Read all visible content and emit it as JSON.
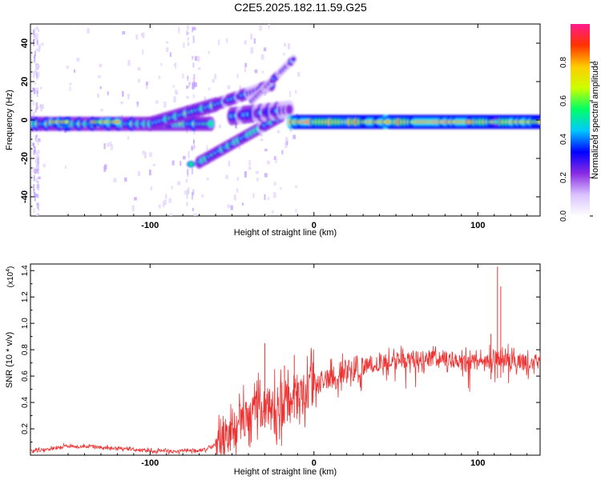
{
  "figure": {
    "title": "C2E5.2025.182.11.59.G25",
    "background": "#ffffff",
    "trace_color": "#ee3333"
  },
  "chart_data": [
    {
      "type": "heatmap",
      "name": "spectrogram",
      "xlabel": "Height of straight line (km)",
      "ylabel": "Frequency (Hz)",
      "xlim": [
        -173,
        138
      ],
      "ylim": [
        -50,
        50
      ],
      "xticks": [
        -100,
        0,
        100
      ],
      "yticks": [
        -40,
        -20,
        0,
        20,
        40
      ],
      "grid": false,
      "colorbar": {
        "label": "Normalized spectral amplitude",
        "range": [
          0,
          1
        ],
        "ticks": [
          "0.0",
          "0.2",
          "0.4",
          "0.6",
          "0.8"
        ],
        "tick_values": [
          0,
          0.2,
          0.4,
          0.6,
          0.8
        ],
        "colormap": [
          "#ffffff",
          "#d9c2ff",
          "#8a2be2",
          "#0000ff",
          "#00c8ff",
          "#00ff66",
          "#ccff00",
          "#ffcc00",
          "#ff3300",
          "#ff1a8c"
        ]
      },
      "features": [
        {
          "name": "main line left",
          "x": [
            -173,
            -60
          ],
          "freq_center": -2,
          "freq_width": 6,
          "amplitude": 0.55
        },
        {
          "name": "rising branch",
          "x": [
            -100,
            -60
          ],
          "freq_start": -2,
          "freq_end": 8,
          "amplitude": 0.5
        },
        {
          "name": "upper arc",
          "x": [
            -60,
            -25
          ],
          "freq_start": 8,
          "freq_end": 18,
          "amplitude": 0.4
        },
        {
          "name": "steep upper arc",
          "x": [
            -38,
            -12
          ],
          "freq_start": 10,
          "freq_end": 32,
          "amplitude": 0.3
        },
        {
          "name": "lower arc",
          "x": [
            -70,
            -20
          ],
          "freq_start": -22,
          "freq_end": 2,
          "amplitude": 0.45
        },
        {
          "name": "blob",
          "x": -75,
          "freq": -23,
          "amplitude": 0.5
        },
        {
          "name": "main line right",
          "x": [
            -14,
            138
          ],
          "freq_center": -1,
          "freq_width": 6,
          "amplitude": 0.75
        }
      ]
    },
    {
      "type": "line",
      "name": "snr",
      "xlabel": "Height of straight line (km)",
      "ylabel": "SNR (10 * v/v)",
      "yscale_label": "(x10",
      "yscale_exp": "4",
      "xlim": [
        -173,
        138
      ],
      "ylim": [
        0,
        14500
      ],
      "xticks": [
        -100,
        0,
        100
      ],
      "yticks": [
        2000,
        4000,
        6000,
        8000,
        10000,
        12000,
        14000
      ],
      "ytick_labels": [
        "0.2",
        "0.4",
        "0.6",
        "0.8",
        "1.0",
        "1.2",
        "1.4"
      ],
      "grid": false,
      "series": [
        {
          "color": "#ee3333",
          "x": [
            -173,
            -160,
            -150,
            -140,
            -130,
            -120,
            -110,
            -100,
            -90,
            -80,
            -70,
            -65,
            -60,
            -55,
            -50,
            -45,
            -40,
            -35,
            -30,
            -25,
            -20,
            -15,
            -10,
            -5,
            0,
            5,
            10,
            15,
            20,
            30,
            40,
            50,
            60,
            70,
            80,
            90,
            100,
            105,
            110,
            115,
            120,
            125,
            130,
            138
          ],
          "y": [
            300,
            500,
            700,
            650,
            600,
            550,
            450,
            350,
            300,
            300,
            350,
            500,
            800,
            1200,
            1800,
            2500,
            3000,
            3400,
            3600,
            3700,
            3800,
            4100,
            4500,
            4900,
            5200,
            5600,
            5900,
            6100,
            6400,
            6700,
            7000,
            7100,
            7200,
            7400,
            7300,
            7100,
            7000,
            7200,
            7300,
            7400,
            7300,
            7100,
            6900,
            7200
          ]
        }
      ],
      "spikes": [
        {
          "x": -30,
          "y": 8500
        },
        {
          "x": -18,
          "y": 6800
        },
        {
          "x": -12,
          "y": 7600
        },
        {
          "x": 108,
          "y": 9200
        },
        {
          "x": 112,
          "y": 14300
        },
        {
          "x": 114,
          "y": 12800
        }
      ]
    }
  ]
}
